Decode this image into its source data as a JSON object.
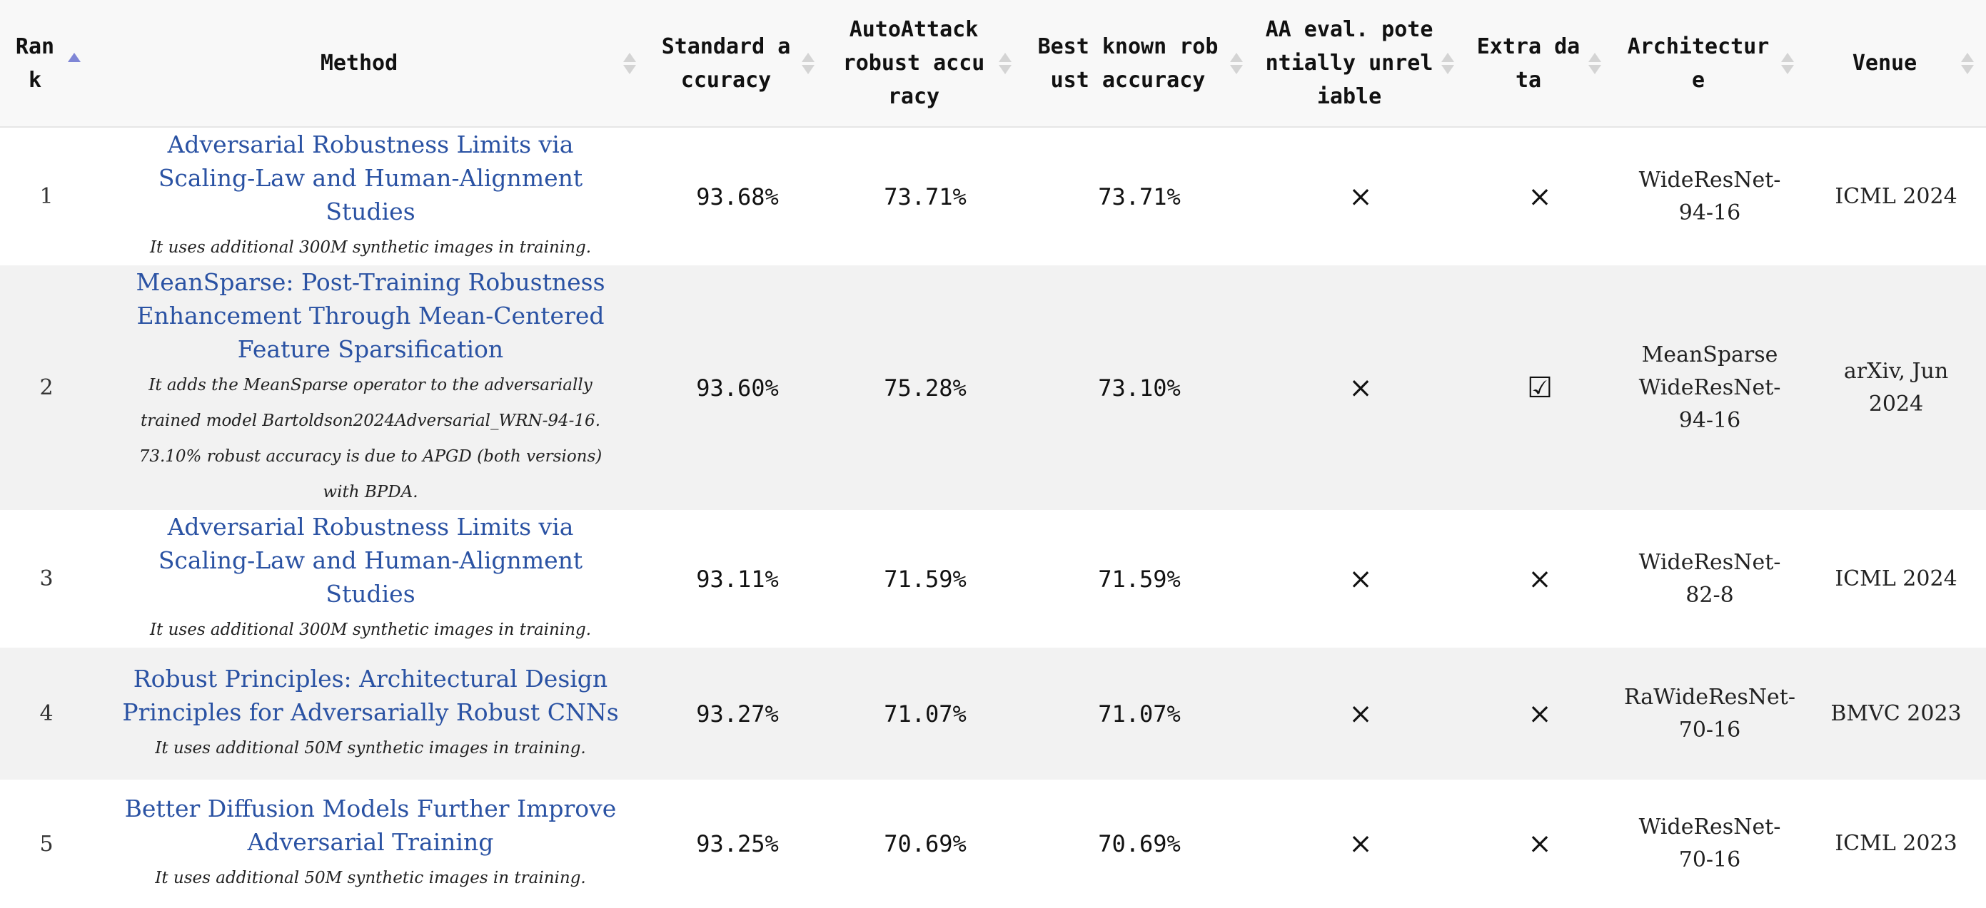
{
  "headers": {
    "rank": "Ran k",
    "method": "Method",
    "standard": "Standard accuracy",
    "autoattack": "AutoAttack robust accuracy",
    "bestknown": "Best known robust accuracy",
    "aaeval": "AA eval. potentially unreliable",
    "extra": "Extra data",
    "arch": "Architectur e",
    "venue": "Venue"
  },
  "icons": {
    "cross": "×",
    "check": "☑"
  },
  "rows": [
    {
      "rank": "1",
      "title": "Adversarial Robustness Limits via Scaling-Law and Human-Alignment Studies",
      "note": "It uses additional 300M synthetic images in training.",
      "standard": "93.68%",
      "autoattack": "73.71%",
      "bestknown": "73.71%",
      "aa_unreliable": "cross",
      "extra_data": "cross",
      "architecture": "WideResNet-94-16",
      "venue": "ICML 2024"
    },
    {
      "rank": "2",
      "title": "MeanSparse: Post-Training Robustness Enhancement Through Mean-Centered Feature Sparsification",
      "note": "It adds the MeanSparse operator to the adversarially trained model Bartoldson2024Adversarial_WRN-94-16. 73.10% robust accuracy is due to APGD (both versions) with BPDA.",
      "standard": "93.60%",
      "autoattack": "75.28%",
      "bestknown": "73.10%",
      "aa_unreliable": "cross",
      "extra_data": "check",
      "architecture": "MeanSparse WideResNet-94-16",
      "venue": "arXiv, Jun 2024"
    },
    {
      "rank": "3",
      "title": "Adversarial Robustness Limits via Scaling-Law and Human-Alignment Studies",
      "note": "It uses additional 300M synthetic images in training.",
      "standard": "93.11%",
      "autoattack": "71.59%",
      "bestknown": "71.59%",
      "aa_unreliable": "cross",
      "extra_data": "cross",
      "architecture": "WideResNet-82-8",
      "venue": "ICML 2024"
    },
    {
      "rank": "4",
      "title": "Robust Principles: Architectural Design Principles for Adversarially Robust CNNs",
      "note": "It uses additional 50M synthetic images in training.",
      "standard": "93.27%",
      "autoattack": "71.07%",
      "bestknown": "71.07%",
      "aa_unreliable": "cross",
      "extra_data": "cross",
      "architecture": "RaWideResNet-70-16",
      "venue": "BMVC 2023"
    },
    {
      "rank": "5",
      "title": "Better Diffusion Models Further Improve Adversarial Training",
      "note": "It uses additional 50M synthetic images in training.",
      "standard": "93.25%",
      "autoattack": "70.69%",
      "bestknown": "70.69%",
      "aa_unreliable": "cross",
      "extra_data": "cross",
      "architecture": "WideResNet-70-16",
      "venue": "ICML 2023"
    }
  ]
}
